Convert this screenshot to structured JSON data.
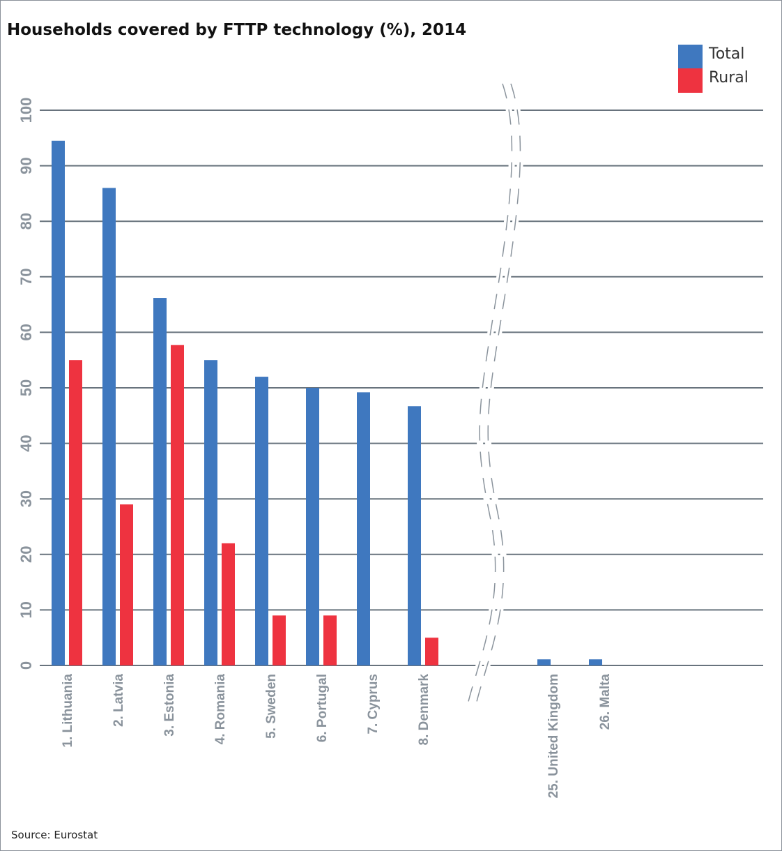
{
  "chart_data": {
    "type": "bar",
    "title": "Households covered by FTTP technology (%), 2014",
    "source": "Source: Eurostat",
    "categories": [
      "1. Lithuania",
      "2. Latvia",
      "3. Estonia",
      "4. Romania",
      "5. Sweden",
      "6. Portugal",
      "7. Cyprus",
      "8. Denmark",
      "25. United Kingdom",
      "26. Malta"
    ],
    "highlight_category": "1. Lithuania",
    "series": [
      {
        "name": "Total",
        "color": "#3f78bf",
        "values": [
          94.5,
          86,
          66.2,
          55,
          52,
          50,
          49.2,
          46.7,
          1.1,
          1.1
        ]
      },
      {
        "name": "Rural",
        "color": "#ee3340",
        "values": [
          55,
          29,
          57.7,
          22,
          9,
          9,
          0,
          5,
          null,
          null
        ]
      }
    ],
    "ylim": [
      0,
      100
    ],
    "yticks": [
      0,
      10,
      20,
      30,
      40,
      50,
      60,
      70,
      80,
      90,
      100
    ],
    "xlabel": "",
    "ylabel": "",
    "grid": true,
    "axis_break_after": "8. Denmark",
    "legend_position": "top-right",
    "colors": {
      "gridline": "#68737d",
      "tick_label": "#8a939c",
      "highlight_label": "#ee3340"
    }
  }
}
